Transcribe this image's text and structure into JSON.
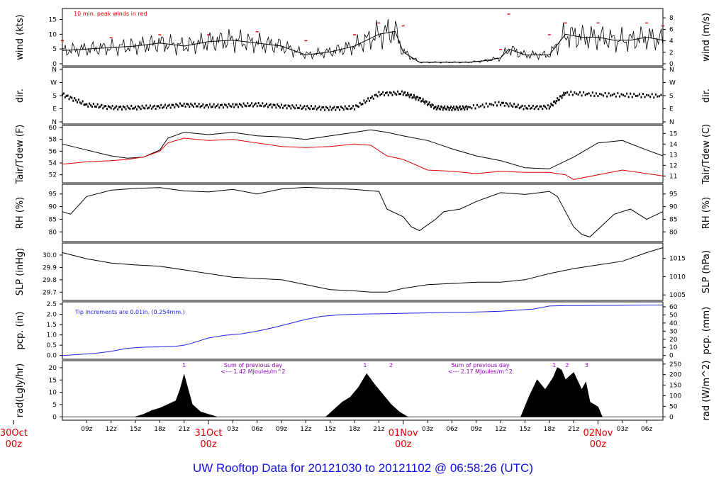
{
  "footer_title": "UW Rooftop Data for 20121030  to  20121102 @ 06:58:26  (UTC)",
  "colors": {
    "red": "#e00000",
    "blue": "#2020e0",
    "purple": "#9900cc",
    "footer": "#1010e0"
  },
  "time_axis": {
    "hour_ticks": [
      {
        "h": 9,
        "label": "09z"
      },
      {
        "h": 12,
        "label": "12z"
      },
      {
        "h": 15,
        "label": "15z"
      },
      {
        "h": 18,
        "label": "18z"
      },
      {
        "h": 21,
        "label": "21z"
      },
      {
        "h": 27,
        "label": "03z"
      },
      {
        "h": 30,
        "label": "06z"
      },
      {
        "h": 33,
        "label": "09z"
      },
      {
        "h": 36,
        "label": "12z"
      },
      {
        "h": 39,
        "label": "15z"
      },
      {
        "h": 42,
        "label": "18z"
      },
      {
        "h": 45,
        "label": "21z"
      },
      {
        "h": 51,
        "label": "03z"
      },
      {
        "h": 54,
        "label": "06z"
      },
      {
        "h": 57,
        "label": "09z"
      },
      {
        "h": 60,
        "label": "12z"
      },
      {
        "h": 63,
        "label": "15z"
      },
      {
        "h": 66,
        "label": "18z"
      },
      {
        "h": 69,
        "label": "21z"
      },
      {
        "h": 75,
        "label": "03z"
      },
      {
        "h": 78,
        "label": "06z"
      }
    ],
    "day_labels": [
      {
        "h": 0,
        "date": "30Oct",
        "hour": "00z"
      },
      {
        "h": 24,
        "date": "31Oct",
        "hour": "00z"
      },
      {
        "h": 48,
        "date": "01Nov",
        "hour": "00z"
      },
      {
        "h": 72,
        "date": "02Nov",
        "hour": "00z"
      }
    ]
  },
  "panels": {
    "wind": {
      "left_label": "wind (kts)",
      "right_label": "wind (m/s)",
      "left_ticks": [
        "0",
        "5",
        "10",
        "15"
      ],
      "right_ticks": [
        "0",
        "2",
        "4",
        "6",
        "8"
      ],
      "note": "10 min. peak winds in red"
    },
    "dir": {
      "left_label": "dir.",
      "right_label": "dir.",
      "left_ticks": [
        "N",
        "E",
        "S",
        "W",
        "N"
      ],
      "right_ticks": [
        "N",
        "E",
        "S",
        "W",
        "N"
      ]
    },
    "temp": {
      "left_label": "Tair/Tdew (F)",
      "right_label": "Tair/Tdew (C)",
      "left_ticks": [
        "52",
        "54",
        "56",
        "58",
        "60"
      ],
      "right_ticks": [
        "11",
        "12",
        "13",
        "14",
        "15"
      ]
    },
    "rh": {
      "left_label": "RH (%)",
      "right_label": "RH (%)",
      "left_ticks": [
        "80",
        "85",
        "90",
        "95"
      ],
      "right_ticks": [
        "80",
        "85",
        "90",
        "95"
      ]
    },
    "slp": {
      "left_label": "SLP (inHg)",
      "right_label": "SLP (hPa)",
      "left_ticks": [
        "29.7",
        "29.8",
        "29.9",
        "30.0"
      ],
      "right_ticks": [
        "1005",
        "1010",
        "1015"
      ]
    },
    "pcp": {
      "left_label": "pcp. (in)",
      "right_label": "pcp. (mm)",
      "left_ticks": [
        "0.0",
        "0.5",
        "1.0",
        "1.5",
        "2.0",
        "2.5"
      ],
      "right_ticks": [
        "0",
        "10",
        "20",
        "30",
        "40",
        "50",
        "60"
      ],
      "note": "Tip increments are 0.01in. (0.254mm.)"
    },
    "rad": {
      "left_label": "rad(Lgly/hr)",
      "right_label": "rad (W/m^2)",
      "left_ticks": [
        "0",
        "5",
        "10",
        "15",
        "20"
      ],
      "right_ticks": [
        "0",
        "50",
        "100",
        "150",
        "200",
        "250"
      ],
      "sums": [
        {
          "line1": "Sum of previous day",
          "line2": "<--- 1.42 MJoules/m^2"
        },
        {
          "line1": "Sum of previous day",
          "line2": "<--- 2.17 MJoules/m^2"
        }
      ],
      "peak_markers": [
        {
          "h": 21.0,
          "label": "1"
        },
        {
          "h": 43.3,
          "label": "1"
        },
        {
          "h": 46.5,
          "label": "2"
        },
        {
          "h": 66.6,
          "label": "1"
        },
        {
          "h": 68.2,
          "label": "2"
        },
        {
          "h": 70.6,
          "label": "3"
        }
      ]
    }
  },
  "chart_data": [
    {
      "type": "line",
      "title": "",
      "xlabel": "",
      "ylabel": "wind (kts)",
      "ylim": [
        0,
        18
      ],
      "series": [
        {
          "name": "",
          "x": [
            6,
            9,
            12,
            15,
            18,
            21,
            24,
            27,
            30,
            33,
            36,
            39,
            42,
            45,
            47,
            48,
            50,
            52,
            54,
            56,
            58,
            60,
            61,
            63,
            65,
            66,
            68,
            70,
            72,
            74,
            76,
            78,
            80
          ],
          "y": [
            4.5,
            5,
            5.5,
            6,
            7,
            6,
            7.5,
            8,
            7,
            6,
            3,
            4,
            6,
            10,
            11,
            4,
            0.5,
            0.5,
            0.5,
            0.5,
            1,
            2,
            5,
            3,
            3,
            3,
            10,
            9,
            9,
            8,
            8,
            9,
            8
          ]
        },
        {
          "name": "10 min. peak winds",
          "x": [
            6,
            12,
            18,
            24,
            30,
            36,
            42,
            45,
            48,
            60,
            61,
            66,
            68,
            72,
            78,
            80
          ],
          "y": [
            8,
            9,
            10,
            10,
            11,
            8,
            10,
            14,
            13,
            5,
            17,
            10,
            14,
            14,
            14,
            13
          ]
        }
      ]
    },
    {
      "type": "scatter",
      "title": "",
      "xlabel": "",
      "ylabel": "dir.",
      "ylim": [
        0,
        360
      ],
      "series": [
        {
          "name": "",
          "x": [
            6,
            9,
            12,
            15,
            18,
            21,
            24,
            27,
            30,
            33,
            36,
            39,
            42,
            45,
            48,
            50,
            52,
            54,
            56,
            60,
            63,
            66,
            68,
            72,
            76,
            80
          ],
          "y": [
            190,
            120,
            100,
            100,
            105,
            120,
            110,
            115,
            120,
            110,
            100,
            95,
            100,
            195,
            200,
            160,
            100,
            95,
            100,
            130,
            100,
            105,
            200,
            190,
            185,
            180
          ]
        }
      ]
    },
    {
      "type": "line",
      "title": "",
      "xlabel": "",
      "ylabel": "Tair/Tdew (F)",
      "ylim": [
        51,
        60
      ],
      "series": [
        {
          "name": "Tair",
          "x": [
            6,
            9,
            12,
            14,
            16,
            18,
            19,
            21,
            24,
            27,
            30,
            33,
            36,
            39,
            42,
            44,
            46,
            48,
            51,
            54,
            57,
            60,
            63,
            66,
            69,
            72,
            75,
            78,
            80
          ],
          "y": [
            57.2,
            56.2,
            55.2,
            54.8,
            55.0,
            56.2,
            58.2,
            59.2,
            58.8,
            59.2,
            58.6,
            58.4,
            58.0,
            58.6,
            59.2,
            59.6,
            59.2,
            58.6,
            57.8,
            56.4,
            55.2,
            54.4,
            53.2,
            53.0,
            55.0,
            57.4,
            57.8,
            56.2,
            55.2
          ]
        },
        {
          "name": "Tdew",
          "x": [
            6,
            9,
            12,
            14,
            16,
            18,
            19,
            21,
            24,
            27,
            30,
            33,
            36,
            39,
            42,
            44,
            46,
            48,
            51,
            54,
            57,
            60,
            63,
            66,
            68,
            69,
            72,
            75,
            78,
            80
          ],
          "y": [
            53.8,
            54.2,
            54.4,
            54.6,
            55.0,
            56.0,
            57.4,
            58.2,
            57.8,
            58.0,
            57.4,
            56.8,
            56.6,
            56.8,
            57.2,
            57.0,
            55.2,
            54.6,
            52.8,
            52.6,
            52.2,
            52.6,
            52.4,
            52.4,
            52.0,
            51.2,
            52.0,
            52.8,
            52.2,
            51.8
          ]
        }
      ]
    },
    {
      "type": "line",
      "title": "",
      "xlabel": "",
      "ylabel": "RH (%)",
      "ylim": [
        77,
        98
      ],
      "series": [
        {
          "name": "",
          "x": [
            6,
            7,
            9,
            12,
            15,
            18,
            21,
            24,
            27,
            30,
            33,
            36,
            39,
            42,
            45,
            46,
            48,
            49,
            50,
            52,
            53,
            55,
            57,
            60,
            63,
            66,
            67,
            68,
            69,
            70,
            71,
            72,
            74,
            76,
            78,
            80
          ],
          "y": [
            88,
            87,
            94,
            96.5,
            97.2,
            97.5,
            96.2,
            95.8,
            96.8,
            95.0,
            97.0,
            97.6,
            97.2,
            96.8,
            96.0,
            89,
            86,
            82,
            80.5,
            85,
            88,
            89,
            92,
            95.5,
            94.8,
            96.0,
            94,
            88,
            82,
            79,
            78,
            81,
            87,
            89,
            85,
            88
          ]
        }
      ]
    },
    {
      "type": "line",
      "title": "",
      "xlabel": "",
      "ylabel": "SLP (inHg)",
      "ylim": [
        29.65,
        30.08
      ],
      "series": [
        {
          "name": "",
          "x": [
            6,
            9,
            12,
            15,
            18,
            21,
            24,
            27,
            30,
            33,
            36,
            39,
            42,
            44,
            46,
            48,
            51,
            54,
            57,
            60,
            63,
            66,
            69,
            72,
            75,
            78,
            80
          ],
          "y": [
            30.02,
            29.97,
            29.935,
            29.92,
            29.91,
            29.88,
            29.85,
            29.82,
            29.81,
            29.8,
            29.76,
            29.72,
            29.71,
            29.7,
            29.7,
            29.73,
            29.76,
            29.77,
            29.78,
            29.78,
            29.8,
            29.85,
            29.89,
            29.92,
            29.95,
            30.02,
            30.06
          ]
        }
      ]
    },
    {
      "type": "line",
      "title": "",
      "xlabel": "",
      "ylabel": "pcp. (in)",
      "ylim": [
        0,
        2.5
      ],
      "series": [
        {
          "name": "",
          "x": [
            6,
            8,
            10,
            12,
            14,
            16,
            18,
            20,
            21,
            22,
            24,
            26,
            28,
            30,
            32,
            34,
            36,
            38,
            40,
            42,
            44,
            46,
            48,
            50,
            52,
            54,
            56,
            58,
            60,
            62,
            64,
            66,
            68,
            70,
            72,
            74,
            76,
            78,
            80
          ],
          "y": [
            0,
            0.05,
            0.1,
            0.2,
            0.35,
            0.4,
            0.42,
            0.45,
            0.5,
            0.6,
            0.85,
            0.98,
            1.05,
            1.18,
            1.35,
            1.55,
            1.75,
            1.9,
            1.97,
            2.0,
            2.02,
            2.03,
            2.05,
            2.06,
            2.08,
            2.09,
            2.1,
            2.12,
            2.15,
            2.2,
            2.25,
            2.4,
            2.42,
            2.42,
            2.43,
            2.43,
            2.44,
            2.45,
            2.45
          ]
        }
      ]
    },
    {
      "type": "area",
      "title": "",
      "xlabel": "",
      "ylabel": "rad(Lgly/hr)",
      "ylim": [
        0,
        22
      ],
      "series": [
        {
          "name": "",
          "x": [
            15,
            16,
            17,
            18,
            19,
            20,
            20.5,
            21,
            22,
            23,
            24,
            25,
            38.5,
            39.5,
            40.5,
            41.5,
            42.5,
            43.5,
            44.5,
            45.5,
            46.5,
            47.5,
            48.5,
            62.5,
            63.5,
            64.5,
            65.5,
            66.5,
            67,
            67.5,
            68,
            69,
            70,
            70.5,
            71,
            72,
            72.5
          ],
          "y": [
            0,
            1,
            2.5,
            3.5,
            5,
            6.5,
            11,
            17,
            5,
            2,
            1,
            0,
            0,
            3,
            6,
            8,
            12,
            17.5,
            13,
            9,
            5,
            2,
            0,
            0,
            8,
            15,
            11,
            16,
            20,
            19,
            15,
            18,
            11,
            14,
            6,
            4,
            0
          ]
        }
      ]
    }
  ]
}
